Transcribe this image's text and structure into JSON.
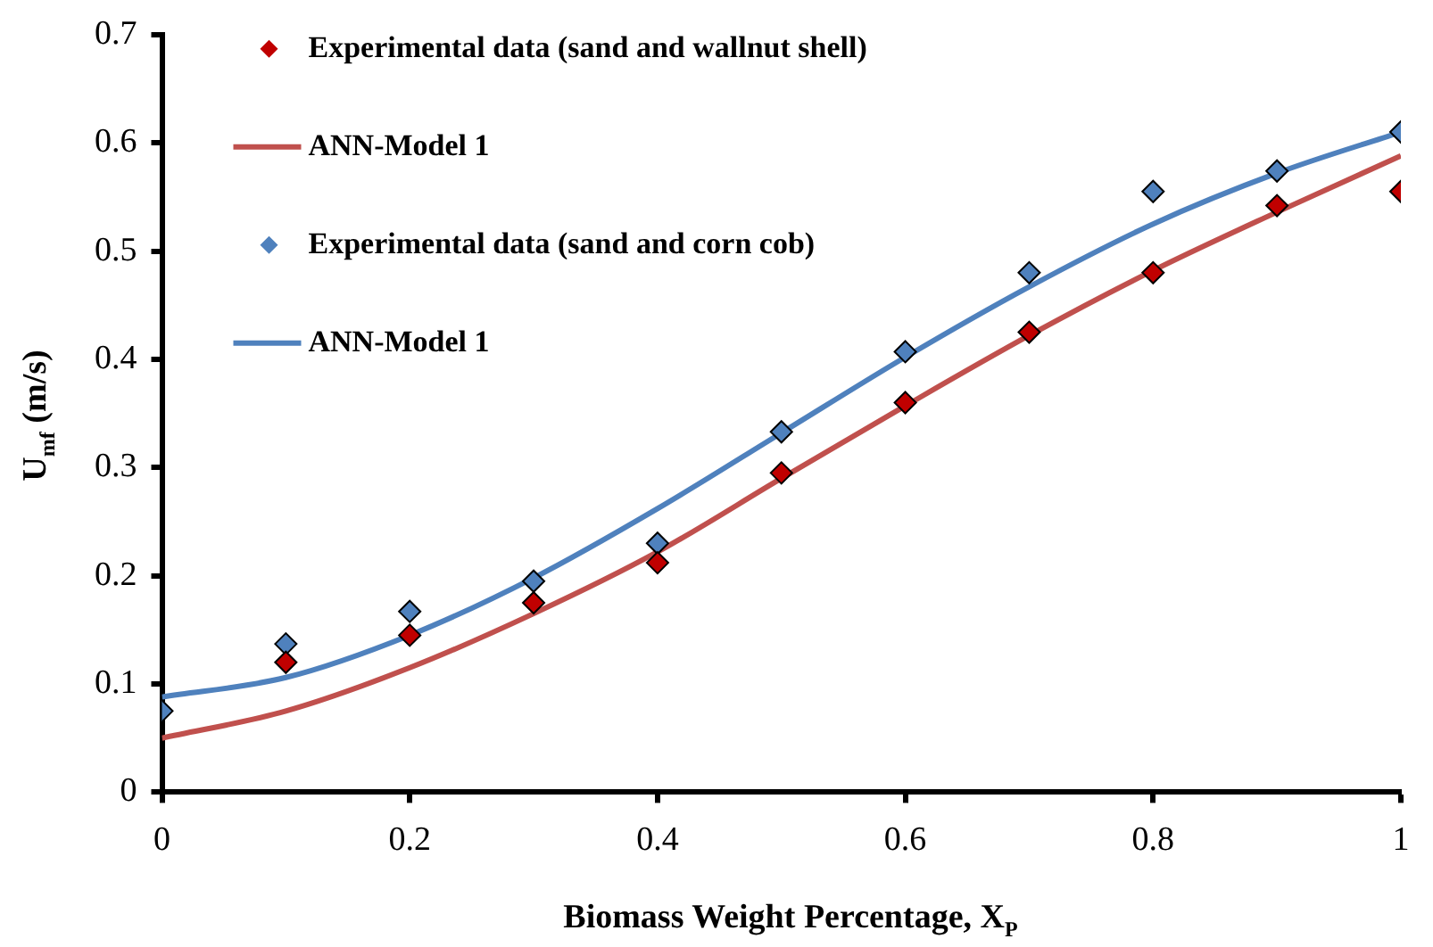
{
  "chart_data": {
    "type": "scatter",
    "xlabel": "Biomass Weight Percentage, X$_{P}$",
    "ylabel": "U$_{mf}$ (m/s)",
    "x": [
      0,
      0.1,
      0.2,
      0.3,
      0.4,
      0.5,
      0.6,
      0.7,
      0.8,
      0.9,
      1
    ],
    "series": [
      {
        "name": "Experimental data (sand and wallnut shell)",
        "marker": "diamond",
        "color": "#c00000",
        "values": [
          null,
          0.12,
          0.145,
          0.175,
          0.212,
          0.295,
          0.36,
          0.425,
          0.48,
          0.542,
          0.555
        ]
      },
      {
        "name": "ANN-Model 1",
        "type": "line",
        "marker": "none",
        "color": "#c0504d",
        "values": [
          0.05,
          0.075,
          0.115,
          0.165,
          0.222,
          0.29,
          0.357,
          0.422,
          0.482,
          0.536,
          0.588
        ]
      },
      {
        "name": "Experimental data (sand and corn cob)",
        "marker": "diamond",
        "color": "#4f81bd",
        "values": [
          0.075,
          0.137,
          0.167,
          0.195,
          0.23,
          0.333,
          0.407,
          0.48,
          0.555,
          0.574,
          0.61
        ]
      },
      {
        "name": "ANN-Model 1",
        "type": "line",
        "marker": "none",
        "color": "#4f81bd",
        "values": [
          0.088,
          0.106,
          0.145,
          0.198,
          0.262,
          0.332,
          0.402,
          0.467,
          0.525,
          0.572,
          0.61
        ]
      }
    ],
    "xlim": [
      0,
      1
    ],
    "xticks": [
      0,
      0.2,
      0.4,
      0.6,
      0.8,
      1
    ],
    "ylim": [
      0,
      0.7
    ],
    "yticks": [
      0,
      0.1,
      0.2,
      0.3,
      0.4,
      0.5,
      0.6,
      0.7
    ],
    "grid": false,
    "legend": "top left"
  }
}
